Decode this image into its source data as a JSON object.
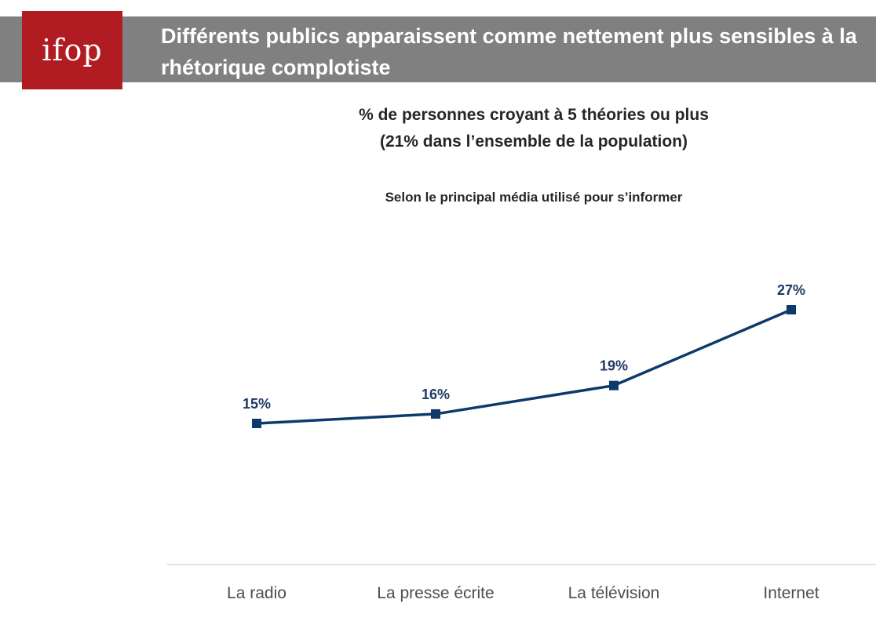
{
  "header": {
    "logo_text": "ifop",
    "title": "Différents publics apparaissent comme nettement plus sensibles à la rhétorique complotiste"
  },
  "colors": {
    "header_bar": "#808080",
    "logo_bg": "#b01c22",
    "series_line": "#0e3a6b",
    "data_label": "#1f3864",
    "axis_line": "#d9d9d9"
  },
  "chart_data": {
    "type": "line",
    "title": "% de personnes croyant à 5 théories ou plus",
    "title_lines": [
      "% de personnes croyant à 5 théories ou plus",
      "(21% dans l’ensemble de la population)"
    ],
    "subtitle": "Selon le principal média utilisé pour s’informer",
    "categories": [
      "La radio",
      "La presse écrite",
      "La télévision",
      "Internet"
    ],
    "series": [
      {
        "values": [
          15,
          16,
          19,
          27
        ],
        "labels": [
          "15%",
          "16%",
          "19%",
          "27%"
        ]
      }
    ],
    "ylim": [
      0,
      30
    ],
    "grid": false,
    "legend": "none"
  }
}
